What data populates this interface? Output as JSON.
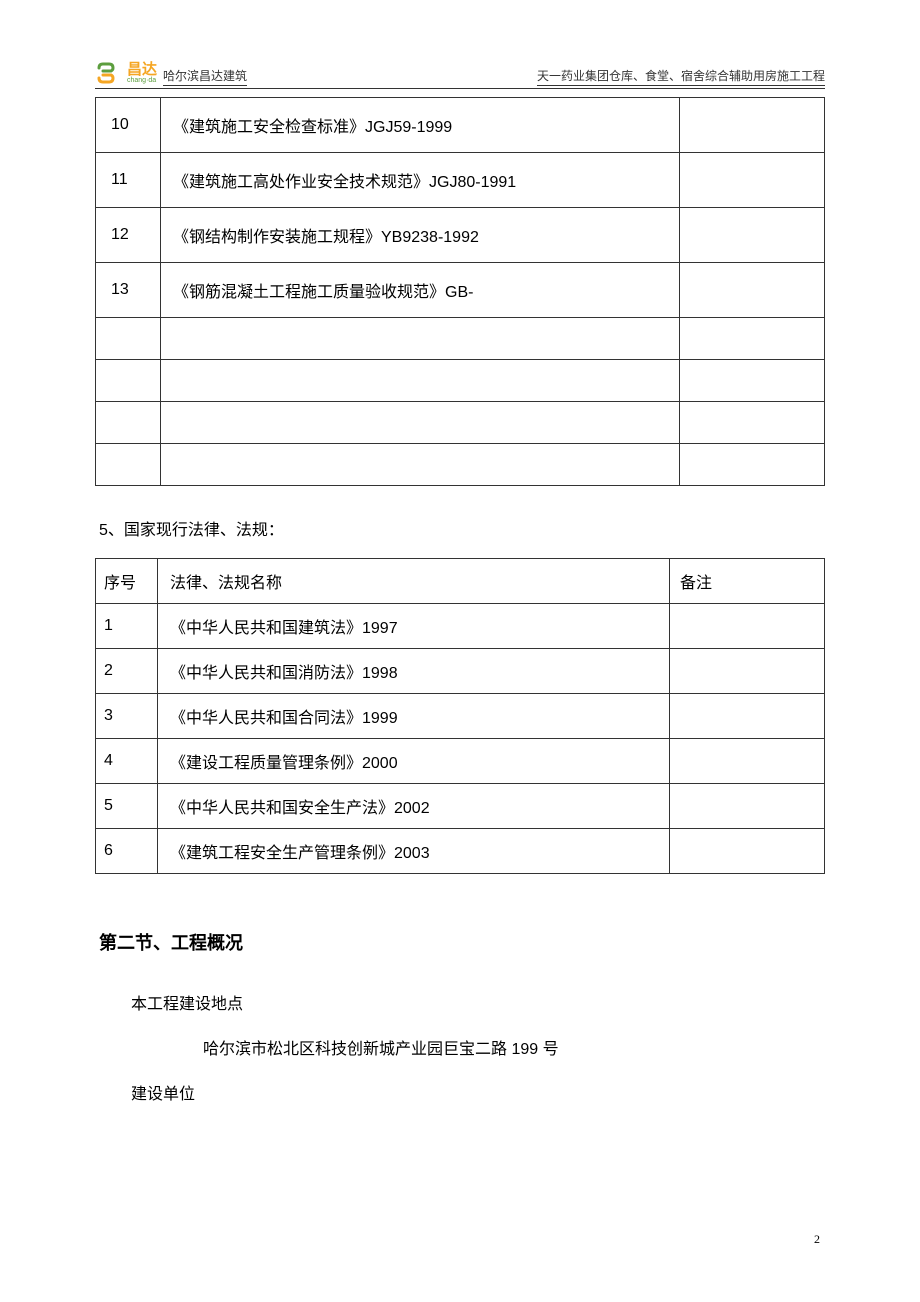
{
  "header": {
    "company": "哈尔滨昌达建筑",
    "project": "天一药业集团仓库、食堂、宿舍综合辅助用房施工工程",
    "logo": {
      "chinese": "昌达",
      "pinyin": "chang·da",
      "icon_colors": {
        "green": "#5c9e3e",
        "orange": "#f5a623"
      }
    }
  },
  "table1": {
    "rows": [
      {
        "num": "10",
        "name": "《建筑施工安全检查标准》JGJ59-1999",
        "remark": ""
      },
      {
        "num": "11",
        "name": "《建筑施工高处作业安全技术规范》JGJ80-1991",
        "remark": ""
      },
      {
        "num": "12",
        "name": "《钢结构制作安装施工规程》YB9238-1992",
        "remark": ""
      },
      {
        "num": "13",
        "name": "《钢筋混凝土工程施工质量验收规范》GB-",
        "remark": ""
      }
    ],
    "empty_rows": 4
  },
  "section5_text": "5、国家现行法律、法规：",
  "table2": {
    "headers": {
      "num": "序号",
      "name": "法律、法规名称",
      "remark": "备注"
    },
    "rows": [
      {
        "num": "1",
        "name": "《中华人民共和国建筑法》1997",
        "remark": ""
      },
      {
        "num": "2",
        "name": "《中华人民共和国消防法》1998",
        "remark": ""
      },
      {
        "num": "3",
        "name": "《中华人民共和国合同法》1999",
        "remark": ""
      },
      {
        "num": "4",
        "name": "《建设工程质量管理条例》2000",
        "remark": ""
      },
      {
        "num": "5",
        "name": "《中华人民共和国安全生产法》2002",
        "remark": ""
      },
      {
        "num": "6",
        "name": "《建筑工程安全生产管理条例》2003",
        "remark": ""
      }
    ]
  },
  "section2_title": "第二节、工程概况",
  "body": {
    "line1": "本工程建设地点",
    "line2": "哈尔滨市松北区科技创新城产业园巨宝二路 199 号",
    "line3": "建设单位"
  },
  "page_number": "2"
}
